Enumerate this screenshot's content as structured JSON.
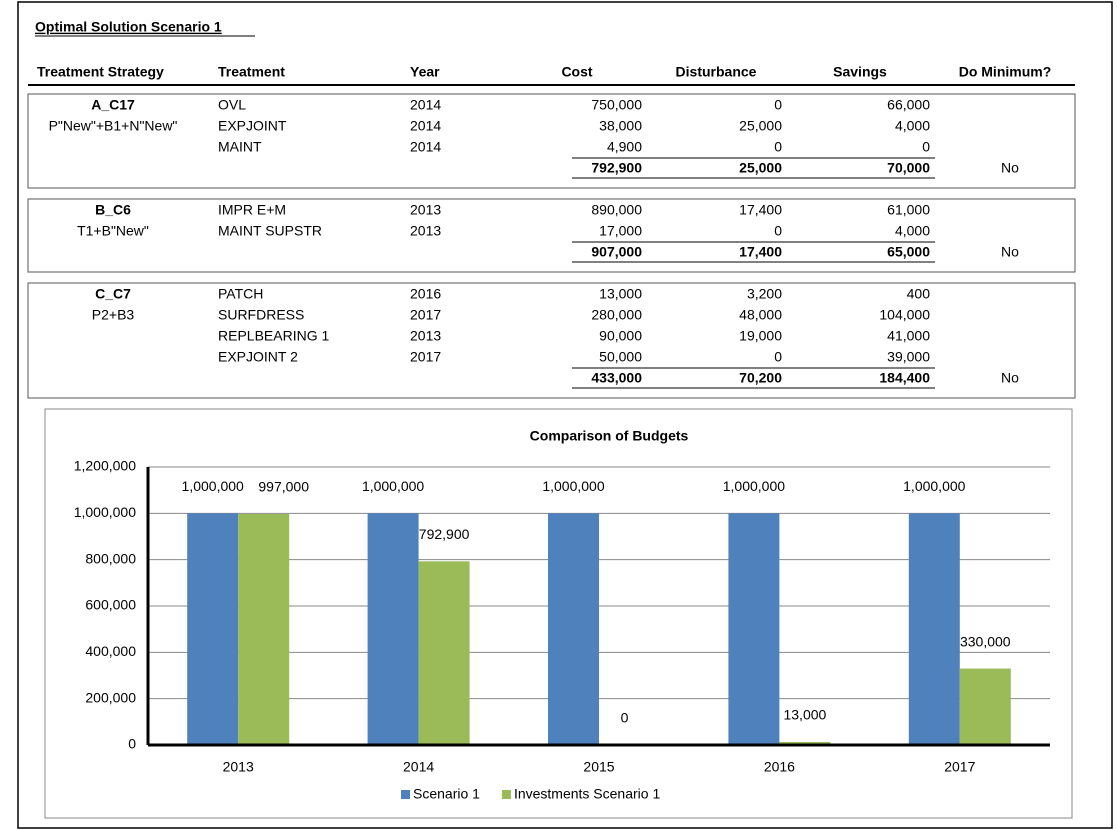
{
  "title": "Optimal Solution Scenario 1",
  "table": {
    "columns": [
      "Treatment Strategy",
      "Treatment",
      "Year",
      "Cost",
      "Disturbance",
      "Savings",
      "Do Minimum?"
    ],
    "groups": [
      {
        "strategy": "A_C17",
        "code": "P\"New\"+B1+N\"New\"",
        "rows": [
          [
            "OVL",
            "2014",
            "750,000",
            "0",
            "66,000"
          ],
          [
            "EXPJOINT",
            "2014",
            "38,000",
            "25,000",
            "4,000"
          ],
          [
            "MAINT",
            "2014",
            "4,900",
            "0",
            "0"
          ]
        ],
        "totals": [
          "792,900",
          "25,000",
          "70,000"
        ],
        "do_minimum": "No"
      },
      {
        "strategy": "B_C6",
        "code": "T1+B\"New\"",
        "rows": [
          [
            "IMPR E+M",
            "2013",
            "890,000",
            "17,400",
            "61,000"
          ],
          [
            "MAINT SUPSTR",
            "2013",
            "17,000",
            "0",
            "4,000"
          ]
        ],
        "totals": [
          "907,000",
          "17,400",
          "65,000"
        ],
        "do_minimum": "No"
      },
      {
        "strategy": "C_C7",
        "code": "P2+B3",
        "rows": [
          [
            "PATCH",
            "2016",
            "13,000",
            "3,200",
            "400"
          ],
          [
            "SURFDRESS",
            "2017",
            "280,000",
            "48,000",
            "104,000"
          ],
          [
            "REPLBEARING 1",
            "2013",
            "90,000",
            "19,000",
            "41,000"
          ],
          [
            "EXPJOINT 2",
            "2017",
            "50,000",
            "0",
            "39,000"
          ]
        ],
        "totals": [
          "433,000",
          "70,200",
          "184,400"
        ],
        "do_minimum": "No"
      }
    ]
  },
  "chart_data": {
    "type": "bar",
    "title": "Comparison of Budgets",
    "categories": [
      "2013",
      "2014",
      "2015",
      "2016",
      "2017"
    ],
    "series": [
      {
        "name": "Scenario 1",
        "color": "#4f81bd",
        "values": [
          1000000,
          1000000,
          1000000,
          1000000,
          1000000
        ],
        "value_labels": [
          "1,000,000",
          "1,000,000",
          "1,000,000",
          "1,000,000",
          "1,000,000"
        ]
      },
      {
        "name": "Investments Scenario 1",
        "color": "#9bbb59",
        "values": [
          997000,
          792900,
          0,
          13000,
          330000
        ],
        "value_labels": [
          "997,000",
          "792,900",
          "0",
          "13,000",
          "330,000"
        ]
      }
    ],
    "ylim": [
      0,
      1200000
    ],
    "yticks": [
      0,
      {
        "value": 200000,
        "label": "200,000"
      },
      {
        "value": 400000,
        "label": "400,000"
      },
      {
        "value": 600000,
        "label": "600,000"
      },
      {
        "value": 800000,
        "label": "800,000"
      },
      {
        "value": 1000000,
        "label": "1,000,000"
      },
      {
        "value": 1200000,
        "label": "1,200,000"
      }
    ],
    "grid": true,
    "legend": "bottom"
  }
}
